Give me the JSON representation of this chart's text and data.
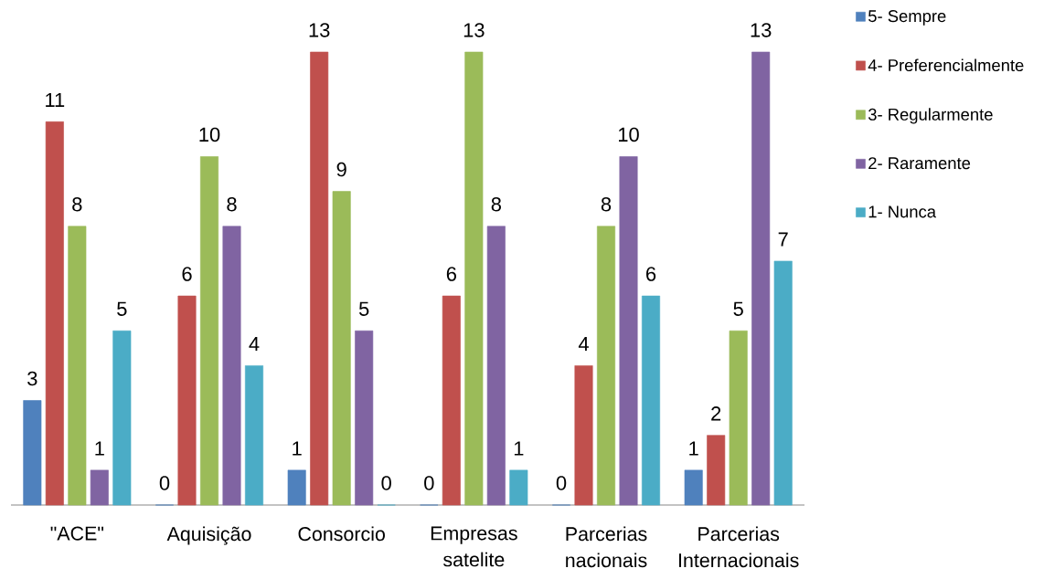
{
  "chart_data": {
    "type": "bar",
    "categories": [
      "\"ACE\"",
      "Aquisição",
      "Consorcio",
      "Empresas satelite",
      "Parcerias nacionais",
      "Parcerias Internacionais"
    ],
    "series": [
      {
        "name": "5- Sempre",
        "color": "#4f81bd",
        "values": [
          3,
          0,
          1,
          0,
          0,
          1
        ]
      },
      {
        "name": "4- Preferencialmente",
        "color": "#c0504d",
        "values": [
          11,
          6,
          13,
          6,
          4,
          2
        ]
      },
      {
        "name": "3- Regularmente",
        "color": "#9bbb59",
        "values": [
          8,
          10,
          9,
          13,
          8,
          5
        ]
      },
      {
        "name": "2- Raramente",
        "color": "#8064a2",
        "values": [
          1,
          8,
          5,
          8,
          10,
          13
        ]
      },
      {
        "name": "1- Nunca",
        "color": "#4bacc6",
        "values": [
          5,
          4,
          0,
          1,
          6,
          7
        ]
      }
    ],
    "data_labels": true,
    "legend": "top right"
  }
}
